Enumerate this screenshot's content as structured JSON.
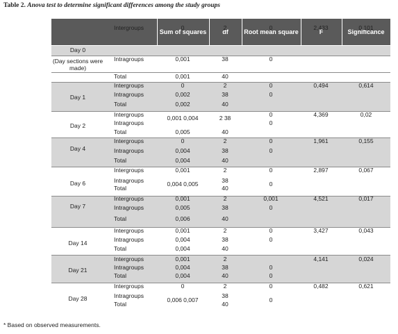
{
  "caption": {
    "label": "Table 2.",
    "title": "Anova test to determine significant differences among the study groups"
  },
  "headers": [
    "Sum of squares",
    "df",
    "Root mean square",
    "F",
    "Significance"
  ],
  "footnote": "* Based on observed measurements.",
  "rows": [
    {
      "day": "Day 0",
      "cells": [
        {
          "top": 40,
          "lbl": "Intergroups",
          "ss": "0",
          "df": "2",
          "rms": "0",
          "f": "2,433",
          "sig": "0,101"
        }
      ]
    },
    {
      "day": "(Day sections were made)",
      "cells": [
        {
          "top": 85,
          "lbl": "Intragroups",
          "ss": "0,001",
          "df": "38",
          "rms": "0",
          "f": "",
          "sig": ""
        }
      ]
    },
    {
      "day": "",
      "cells": [
        {
          "top": 110,
          "lbl": "Total",
          "ss": "0,001",
          "df": "40",
          "rms": "",
          "f": "",
          "sig": ""
        }
      ]
    },
    {
      "day": "Day 1",
      "cells": [
        {
          "top": 123,
          "lbl": "Intergroups",
          "ss": "0",
          "df": "2",
          "rms": "0",
          "f": "0,494",
          "sig": "0,614"
        },
        {
          "top": 136,
          "lbl": "Intragroups",
          "ss": "0,002",
          "df": "38",
          "rms": "0",
          "f": "",
          "sig": ""
        },
        {
          "top": 150,
          "lbl": "Total",
          "ss": "0,002",
          "df": "40",
          "rms": "",
          "f": "",
          "sig": ""
        }
      ]
    },
    {
      "day": "Day 2",
      "cells": [
        {
          "top": 165,
          "lbl": "Intergroups",
          "ss": "",
          "df": "",
          "rms": "0",
          "f": "4,369",
          "sig": "0,02"
        },
        {
          "top": 177,
          "lbl": "Intragroups",
          "ss": "",
          "df": "",
          "rms": "0",
          "f": "",
          "sig": ""
        },
        {
          "top": 170,
          "lbl": "",
          "ss": "0,001 0,004",
          "df": "2 38",
          "rms": "",
          "f": "",
          "sig": ""
        },
        {
          "top": 190,
          "lbl": "Total",
          "ss": "0,005",
          "df": "40",
          "rms": "",
          "f": "",
          "sig": ""
        }
      ]
    },
    {
      "day": "Day 4",
      "cells": [
        {
          "top": 203,
          "lbl": "Intergroups",
          "ss": "0",
          "df": "2",
          "rms": "0",
          "f": "1,961",
          "sig": "0,155"
        },
        {
          "top": 217,
          "lbl": "Intragroups",
          "ss": "0,004",
          "df": "38",
          "rms": "0",
          "f": "",
          "sig": ""
        },
        {
          "top": 231,
          "lbl": "Total",
          "ss": "0,004",
          "df": "40",
          "rms": "",
          "f": "",
          "sig": ""
        }
      ]
    },
    {
      "day": "Day 6",
      "cells": [
        {
          "top": 245,
          "lbl": "Intergroups",
          "ss": "0,001",
          "df": "2",
          "rms": "0",
          "f": "2,897",
          "sig": "0,067"
        },
        {
          "top": 260,
          "lbl": "Intragroups",
          "ss": "",
          "df": "38",
          "rms": "",
          "f": "",
          "sig": ""
        },
        {
          "top": 271,
          "lbl": "Total",
          "ss": "",
          "df": "40",
          "rms": "",
          "f": "",
          "sig": ""
        },
        {
          "top": 265,
          "lbl": "",
          "ss": "0,004 0,005",
          "df": "",
          "rms": "0",
          "f": "",
          "sig": ""
        }
      ]
    },
    {
      "day": "Day 7",
      "cells": [
        {
          "top": 286,
          "lbl": "Intergroups",
          "ss": "0,001",
          "df": "2",
          "rms": "0,001",
          "f": "4,521",
          "sig": "0,017"
        },
        {
          "top": 299,
          "lbl": "Intragroups",
          "ss": "0,005",
          "df": "38",
          "rms": "0",
          "f": "",
          "sig": ""
        },
        {
          "top": 315,
          "lbl": "Total",
          "ss": "0,006",
          "df": "40",
          "rms": "",
          "f": "",
          "sig": ""
        }
      ]
    },
    {
      "day": "Day 14",
      "cells": [
        {
          "top": 332,
          "lbl": "Intergroups",
          "ss": "0,001",
          "df": "2",
          "rms": "0",
          "f": "3,427",
          "sig": "0,043"
        },
        {
          "top": 345,
          "lbl": "Intragroups",
          "ss": "0,004",
          "df": "38",
          "rms": "0",
          "f": "",
          "sig": ""
        },
        {
          "top": 358,
          "lbl": "Total",
          "ss": "0,004",
          "df": "40",
          "rms": "",
          "f": "",
          "sig": ""
        }
      ]
    },
    {
      "day": "Day 21",
      "cells": [
        {
          "top": 373,
          "lbl": "Intergroups",
          "ss": "0,001",
          "df": "2",
          "rms": "",
          "f": "4,141",
          "sig": "0,024"
        },
        {
          "top": 385,
          "lbl": "Intragroups",
          "ss": "0,004",
          "df": "38",
          "rms": "0",
          "f": "",
          "sig": ""
        },
        {
          "top": 397,
          "lbl": "Total",
          "ss": "0,004",
          "df": "40",
          "rms": "0",
          "f": "",
          "sig": ""
        }
      ]
    },
    {
      "day": "Day 28",
      "cells": [
        {
          "top": 412,
          "lbl": "Intergroups",
          "ss": "0",
          "df": "2",
          "rms": "0",
          "f": "0,482",
          "sig": "0,621"
        },
        {
          "top": 426,
          "lbl": "Intragroups",
          "ss": "",
          "df": "38",
          "rms": "",
          "f": "",
          "sig": ""
        },
        {
          "top": 438,
          "lbl": "Total",
          "ss": "",
          "df": "40",
          "rms": "",
          "f": "",
          "sig": ""
        },
        {
          "top": 432,
          "lbl": "",
          "ss": "0,006 0,007",
          "df": "",
          "rms": "0",
          "f": "",
          "sig": ""
        }
      ]
    }
  ]
}
